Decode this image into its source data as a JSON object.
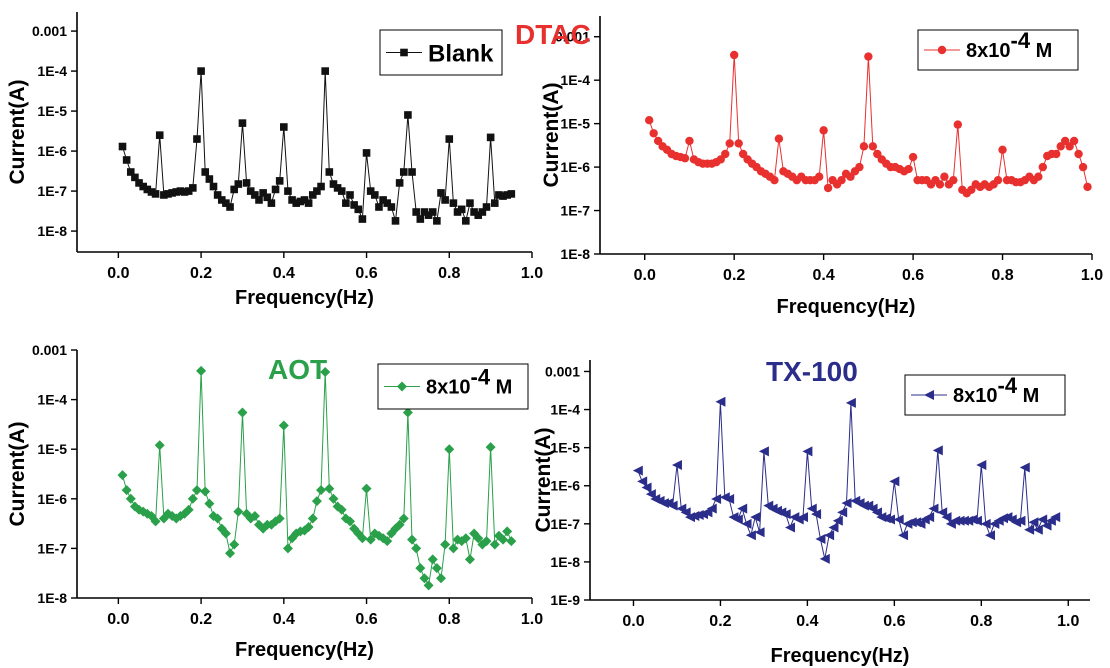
{
  "chart_data": [
    {
      "type": "line",
      "title": "",
      "xlabel": "Frequency(Hz)",
      "ylabel": "Current(A)",
      "yscale": "log",
      "xlim": [
        -0.1,
        1.0
      ],
      "ylim": [
        3e-09,
        0.003
      ],
      "x_ticks": [
        "0.0",
        "0.2",
        "0.4",
        "0.6",
        "0.8",
        "1.0"
      ],
      "y_ticks": [
        "0.001",
        "1E-4",
        "1E-5",
        "1E-6",
        "1E-7",
        "1E-8"
      ],
      "color": "#111111",
      "marker": "square",
      "series": [
        {
          "name": "Blank",
          "x": [
            0.01,
            0.02,
            0.03,
            0.04,
            0.05,
            0.06,
            0.07,
            0.08,
            0.09,
            0.1,
            0.11,
            0.12,
            0.13,
            0.14,
            0.15,
            0.16,
            0.17,
            0.18,
            0.19,
            0.2,
            0.21,
            0.22,
            0.23,
            0.24,
            0.25,
            0.26,
            0.27,
            0.28,
            0.29,
            0.3,
            0.31,
            0.32,
            0.33,
            0.34,
            0.35,
            0.36,
            0.37,
            0.38,
            0.39,
            0.4,
            0.41,
            0.42,
            0.43,
            0.44,
            0.45,
            0.46,
            0.47,
            0.48,
            0.49,
            0.5,
            0.51,
            0.52,
            0.53,
            0.54,
            0.55,
            0.56,
            0.57,
            0.58,
            0.59,
            0.6,
            0.61,
            0.62,
            0.63,
            0.64,
            0.65,
            0.66,
            0.67,
            0.68,
            0.69,
            0.7,
            0.71,
            0.72,
            0.73,
            0.74,
            0.75,
            0.76,
            0.77,
            0.78,
            0.79,
            0.8,
            0.81,
            0.82,
            0.83,
            0.84,
            0.85,
            0.86,
            0.87,
            0.88,
            0.89,
            0.9,
            0.91,
            0.92,
            0.93,
            0.94,
            0.95
          ],
          "y": [
            1.3e-06,
            6e-07,
            3e-07,
            2.2e-07,
            1.6e-07,
            1.3e-07,
            1.1e-07,
            9.5e-08,
            8.5e-08,
            2.5e-06,
            8e-08,
            8.5e-08,
            9e-08,
            9.5e-08,
            1e-07,
            9.5e-08,
            1e-07,
            1.2e-07,
            2e-06,
            0.0001,
            3e-07,
            2e-07,
            1.3e-07,
            8e-08,
            6e-08,
            5e-08,
            4e-08,
            1.1e-07,
            1.5e-07,
            5e-06,
            1.6e-07,
            1e-07,
            8e-08,
            6e-08,
            9e-08,
            7e-08,
            5e-08,
            1.1e-07,
            1.8e-07,
            4e-06,
            1e-07,
            6e-08,
            5e-08,
            5.5e-08,
            6e-08,
            5e-08,
            8e-08,
            1e-07,
            1.3e-07,
            0.0001,
            3e-07,
            1.5e-07,
            1.2e-07,
            1e-07,
            5e-08,
            8e-08,
            4.5e-08,
            3.5e-08,
            2e-08,
            9e-07,
            1e-07,
            8e-08,
            4e-08,
            6e-08,
            5e-08,
            4e-08,
            1.8e-08,
            1.6e-07,
            3e-07,
            8e-06,
            3e-07,
            3e-08,
            2e-08,
            3e-08,
            2.5e-08,
            3e-08,
            1.8e-08,
            9e-08,
            6e-08,
            2e-06,
            5e-08,
            3e-08,
            3.5e-08,
            1.8e-08,
            5e-08,
            3e-08,
            2.5e-08,
            3e-08,
            4e-08,
            2.2e-06,
            5e-08,
            8e-08,
            7.5e-08,
            8e-08,
            8.5e-08
          ]
        }
      ]
    },
    {
      "type": "line",
      "title": "DTAC",
      "title_color": "#e8312f",
      "xlabel": "Frequency(Hz)",
      "ylabel": "Current(A)",
      "yscale": "log",
      "xlim": [
        -0.1,
        1.0
      ],
      "ylim": [
        1e-08,
        0.003
      ],
      "x_ticks": [
        "0.0",
        "0.2",
        "0.4",
        "0.6",
        "0.8",
        "1.0"
      ],
      "y_ticks": [
        "0.001",
        "1E-4",
        "1E-5",
        "1E-6",
        "1E-7",
        "1E-8"
      ],
      "color": "#e8312f",
      "marker": "circle",
      "legend_label": "8x10",
      "legend_exp": "-4",
      "legend_unit": " M",
      "series": [
        {
          "name": "8x10-4 M",
          "x": [
            0.01,
            0.02,
            0.03,
            0.04,
            0.05,
            0.06,
            0.07,
            0.08,
            0.09,
            0.1,
            0.11,
            0.12,
            0.13,
            0.14,
            0.15,
            0.16,
            0.17,
            0.18,
            0.19,
            0.2,
            0.21,
            0.22,
            0.23,
            0.24,
            0.25,
            0.26,
            0.27,
            0.28,
            0.29,
            0.3,
            0.31,
            0.32,
            0.33,
            0.34,
            0.35,
            0.36,
            0.37,
            0.38,
            0.39,
            0.4,
            0.41,
            0.42,
            0.43,
            0.44,
            0.45,
            0.46,
            0.47,
            0.48,
            0.49,
            0.5,
            0.51,
            0.52,
            0.53,
            0.54,
            0.55,
            0.56,
            0.57,
            0.58,
            0.59,
            0.6,
            0.61,
            0.62,
            0.63,
            0.64,
            0.65,
            0.66,
            0.67,
            0.68,
            0.69,
            0.7,
            0.71,
            0.72,
            0.73,
            0.74,
            0.75,
            0.76,
            0.77,
            0.78,
            0.79,
            0.8,
            0.81,
            0.82,
            0.83,
            0.84,
            0.85,
            0.86,
            0.87,
            0.88,
            0.89,
            0.9,
            0.91,
            0.92,
            0.93,
            0.94,
            0.95,
            0.96,
            0.97,
            0.98,
            0.99
          ],
          "y": [
            1.2e-05,
            6e-06,
            4e-06,
            3e-06,
            2.5e-06,
            2e-06,
            1.8e-06,
            1.7e-06,
            1.6e-06,
            4e-06,
            1.5e-06,
            1.3e-06,
            1.2e-06,
            1.2e-06,
            1.2e-06,
            1.3e-06,
            1.5e-06,
            2e-06,
            3.5e-06,
            0.00038,
            3.5e-06,
            2e-06,
            1.5e-06,
            1.2e-06,
            1e-06,
            8e-07,
            7e-07,
            6e-07,
            5e-07,
            4.5e-06,
            8e-07,
            7e-07,
            6e-07,
            5e-07,
            6e-07,
            5e-07,
            5e-07,
            5e-07,
            6e-07,
            7e-06,
            3.3e-07,
            5e-07,
            4e-07,
            5e-07,
            7e-07,
            6e-07,
            8e-07,
            1e-06,
            3e-06,
            0.00035,
            3e-06,
            2e-06,
            1.5e-06,
            1.2e-06,
            1e-06,
            1e-06,
            9e-07,
            8e-07,
            9e-07,
            1.7e-06,
            5e-07,
            5e-07,
            5e-07,
            4e-07,
            5e-07,
            4e-07,
            6e-07,
            4e-07,
            5e-07,
            9.5e-06,
            3e-07,
            2.5e-07,
            3e-07,
            4e-07,
            3.5e-07,
            4e-07,
            3.5e-07,
            4e-07,
            5e-07,
            2.5e-06,
            5e-07,
            5e-07,
            4.5e-07,
            4.5e-07,
            5e-07,
            6e-07,
            5e-07,
            6e-07,
            1e-06,
            1.8e-06,
            2e-06,
            2e-06,
            3e-06,
            4e-06,
            3e-06,
            4e-06,
            2e-06,
            1e-06,
            3.5e-07
          ]
        }
      ]
    },
    {
      "type": "line",
      "title": "AOT",
      "title_color": "#2aa04a",
      "xlabel": "Frequency(Hz)",
      "ylabel": "Current(A)",
      "yscale": "log",
      "xlim": [
        -0.1,
        1.0
      ],
      "ylim": [
        1e-08,
        0.001
      ],
      "x_ticks": [
        "0.0",
        "0.2",
        "0.4",
        "0.6",
        "0.8",
        "1.0"
      ],
      "y_ticks": [
        "0.001",
        "1E-4",
        "1E-5",
        "1E-6",
        "1E-7",
        "1E-8"
      ],
      "color": "#2aa04a",
      "marker": "diamond",
      "legend_label": "8x10",
      "legend_exp": "-4",
      "legend_unit": " M",
      "series": [
        {
          "name": "8x10-4 M",
          "x": [
            0.01,
            0.02,
            0.03,
            0.04,
            0.05,
            0.06,
            0.07,
            0.08,
            0.09,
            0.1,
            0.11,
            0.12,
            0.13,
            0.14,
            0.15,
            0.16,
            0.17,
            0.18,
            0.19,
            0.2,
            0.21,
            0.22,
            0.23,
            0.24,
            0.25,
            0.26,
            0.27,
            0.28,
            0.29,
            0.3,
            0.31,
            0.32,
            0.33,
            0.34,
            0.35,
            0.36,
            0.37,
            0.38,
            0.39,
            0.4,
            0.41,
            0.42,
            0.43,
            0.44,
            0.45,
            0.46,
            0.47,
            0.48,
            0.49,
            0.5,
            0.51,
            0.52,
            0.53,
            0.54,
            0.55,
            0.56,
            0.57,
            0.58,
            0.59,
            0.6,
            0.61,
            0.62,
            0.63,
            0.64,
            0.65,
            0.66,
            0.67,
            0.68,
            0.69,
            0.7,
            0.71,
            0.72,
            0.73,
            0.74,
            0.75,
            0.76,
            0.77,
            0.78,
            0.79,
            0.8,
            0.81,
            0.82,
            0.83,
            0.84,
            0.85,
            0.86,
            0.87,
            0.88,
            0.89,
            0.9,
            0.91,
            0.92,
            0.93,
            0.94,
            0.95
          ],
          "y": [
            3e-06,
            1.5e-06,
            1e-06,
            7e-07,
            6e-07,
            5.5e-07,
            5e-07,
            4.5e-07,
            3.5e-07,
            1.2e-05,
            4e-07,
            5e-07,
            4.5e-07,
            4e-07,
            4.5e-07,
            5e-07,
            6e-07,
            1e-06,
            1.5e-06,
            0.00038,
            1.4e-06,
            8e-07,
            4.5e-07,
            4e-07,
            2.5e-07,
            2e-07,
            8e-08,
            1.2e-07,
            5.5e-07,
            5.5e-05,
            5e-07,
            4e-07,
            4.5e-07,
            3e-07,
            2.5e-07,
            3e-07,
            3e-07,
            3.5e-07,
            4e-07,
            3e-05,
            1e-07,
            1.6e-07,
            2e-07,
            2.2e-07,
            2.3e-07,
            2.7e-07,
            4e-07,
            9e-07,
            1.5e-06,
            0.00036,
            1.6e-06,
            1e-06,
            7e-07,
            6e-07,
            4e-07,
            3.5e-07,
            2.5e-07,
            2e-07,
            1.6e-07,
            1.6e-06,
            1.5e-07,
            2e-07,
            1.8e-07,
            1.6e-07,
            1.4e-07,
            2e-07,
            2.5e-07,
            3e-07,
            4e-07,
            5.5e-05,
            1.5e-07,
            1e-07,
            4e-08,
            2.5e-08,
            1.8e-08,
            6e-08,
            4e-08,
            2.5e-08,
            1.2e-07,
            1e-05,
            1e-07,
            1.5e-07,
            1.4e-07,
            1.6e-07,
            6e-08,
            2e-07,
            1.6e-07,
            1.2e-07,
            1.4e-07,
            1.1e-05,
            1.2e-07,
            1.8e-07,
            1.5e-07,
            2.2e-07,
            1.4e-07
          ]
        }
      ]
    },
    {
      "type": "line",
      "title": "TX-100",
      "title_color": "#2b2d8a",
      "xlabel": "Frequency(Hz)",
      "ylabel": "Current(A)",
      "yscale": "log",
      "xlim": [
        -0.1,
        1.05
      ],
      "ylim": [
        1e-09,
        0.002
      ],
      "x_ticks": [
        "0.0",
        "0.2",
        "0.4",
        "0.6",
        "0.8",
        "1.0"
      ],
      "y_ticks": [
        "0.001",
        "1E-4",
        "1E-5",
        "1E-6",
        "1E-7",
        "1E-8",
        "1E-9"
      ],
      "color": "#2b2d8a",
      "marker": "triangle-left",
      "legend_label": "8x10",
      "legend_exp": "-4",
      "legend_unit": " M",
      "series": [
        {
          "name": "8x10-4 M",
          "x": [
            0.01,
            0.02,
            0.03,
            0.04,
            0.05,
            0.06,
            0.07,
            0.08,
            0.09,
            0.1,
            0.11,
            0.12,
            0.13,
            0.14,
            0.15,
            0.16,
            0.17,
            0.18,
            0.19,
            0.2,
            0.21,
            0.22,
            0.23,
            0.24,
            0.25,
            0.26,
            0.27,
            0.28,
            0.29,
            0.3,
            0.31,
            0.32,
            0.33,
            0.34,
            0.35,
            0.36,
            0.37,
            0.38,
            0.39,
            0.4,
            0.41,
            0.42,
            0.43,
            0.44,
            0.45,
            0.46,
            0.47,
            0.48,
            0.49,
            0.5,
            0.51,
            0.52,
            0.53,
            0.54,
            0.55,
            0.56,
            0.57,
            0.58,
            0.59,
            0.6,
            0.61,
            0.62,
            0.63,
            0.64,
            0.65,
            0.66,
            0.67,
            0.68,
            0.69,
            0.7,
            0.71,
            0.72,
            0.73,
            0.74,
            0.75,
            0.76,
            0.77,
            0.78,
            0.79,
            0.8,
            0.81,
            0.82,
            0.83,
            0.84,
            0.85,
            0.86,
            0.87,
            0.88,
            0.89,
            0.9,
            0.91,
            0.92,
            0.93,
            0.94,
            0.95,
            0.96,
            0.97
          ],
          "y": [
            2.5e-06,
            1.3e-06,
            9e-07,
            6e-07,
            4.5e-07,
            4e-07,
            3.5e-07,
            3.5e-07,
            3e-07,
            3.5e-06,
            2.5e-07,
            2e-07,
            1.5e-07,
            1.6e-07,
            1.7e-07,
            1.8e-07,
            2e-07,
            2.5e-07,
            4.5e-07,
            0.00016,
            5e-07,
            4.5e-07,
            1.5e-07,
            1.3e-07,
            2.5e-07,
            1e-07,
            5e-08,
            1.5e-07,
            6e-08,
            8e-06,
            3e-07,
            2.5e-07,
            2.2e-07,
            2e-07,
            1.8e-07,
            8e-08,
            1.5e-07,
            1.3e-07,
            1.5e-07,
            8e-06,
            2.5e-07,
            1.8e-07,
            4e-08,
            1.2e-08,
            5e-08,
            8e-08,
            1.2e-07,
            2e-07,
            3.5e-07,
            0.00015,
            4e-07,
            3.5e-07,
            3e-07,
            3e-07,
            2.5e-07,
            2e-07,
            1.5e-07,
            1.4e-07,
            1.3e-07,
            1.3e-06,
            1.3e-07,
            5e-08,
            1e-07,
            1.1e-07,
            1.1e-07,
            1e-07,
            1.3e-07,
            1.5e-07,
            2.5e-07,
            8.5e-06,
            2e-07,
            1.5e-07,
            1e-07,
            1.2e-07,
            1.2e-07,
            1.2e-07,
            1.2e-07,
            1.3e-07,
            1.2e-07,
            3.5e-06,
            1e-07,
            5e-08,
            1e-07,
            1.2e-07,
            1.4e-07,
            1.5e-07,
            1.3e-07,
            1.1e-07,
            1.2e-07,
            3e-06,
            7e-08,
            1.1e-07,
            7e-08,
            1.3e-07,
            9e-08,
            1.2e-07,
            1.5e-07
          ]
        }
      ]
    }
  ]
}
